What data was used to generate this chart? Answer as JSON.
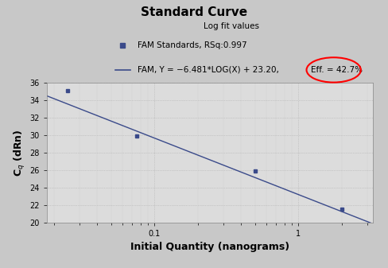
{
  "title": "Standard Curve",
  "xlabel": "Initial Quantity (nanograms)",
  "ylabel": "C$_q$ (dRn)",
  "legend_title": "Log fit values",
  "legend_line1": "FAM Standards, RSq:0.997",
  "legend_line2_part1": "FAM, Y = −6.481*LOG(X) + 23.20, ",
  "legend_line2_part2": "Eff. = 42.7%",
  "data_points_x": [
    0.025,
    0.075,
    0.5,
    2.0
  ],
  "data_points_y": [
    35.1,
    29.9,
    25.9,
    21.5
  ],
  "fit_slope": -6.481,
  "fit_intercept": 23.2,
  "ylim": [
    20,
    36
  ],
  "yticks": [
    20,
    22,
    24,
    26,
    28,
    30,
    32,
    34,
    36
  ],
  "point_color": "#3a4a8a",
  "line_color": "#3a4a8a",
  "grid_color": "#b0b0b0",
  "bg_color": "#c8c8c8",
  "plot_bg_color": "#dcdcdc",
  "legend_bg_color": "#b4b4b4",
  "ellipse_color": "red",
  "title_fontsize": 11,
  "axis_label_fontsize": 9,
  "tick_fontsize": 7,
  "legend_fontsize": 7.5
}
